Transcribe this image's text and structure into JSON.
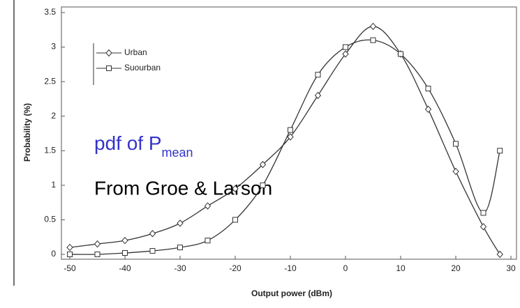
{
  "chart_data": {
    "type": "line",
    "x_label": "Output power (dBm)",
    "y_label": "Probability (%)",
    "x": [
      -50,
      -45,
      -40,
      -35,
      -30,
      -25,
      -20,
      -15,
      -10,
      -5,
      0,
      5,
      10,
      15,
      20,
      25,
      28
    ],
    "series": [
      {
        "name": "Urban",
        "color": "#333333",
        "marker": "diamond",
        "values": [
          0.1,
          0.15,
          0.2,
          0.3,
          0.45,
          0.7,
          0.95,
          1.3,
          1.7,
          2.3,
          2.9,
          3.3,
          2.9,
          2.1,
          1.2,
          0.4,
          0
        ]
      },
      {
        "name": "Suourban",
        "color": "#333333",
        "marker": "square",
        "values": [
          0,
          0,
          0.02,
          0.05,
          0.1,
          0.2,
          0.5,
          1.0,
          1.8,
          2.6,
          3.0,
          3.1,
          2.9,
          2.4,
          1.6,
          0.6,
          1.5
        ]
      }
    ],
    "xlim": [
      -50,
      30
    ],
    "xticks": [
      -50,
      -40,
      -30,
      -20,
      -10,
      0,
      10,
      20,
      30
    ],
    "ylim": [
      0,
      3.5
    ],
    "yticks": [
      0,
      0.5,
      1,
      1.5,
      2,
      2.5,
      3,
      3.5
    ],
    "legend": "upper left",
    "annotations": [
      {
        "text": "pdf of P",
        "subscript": "mean",
        "color": "#3333cc"
      },
      {
        "text": "From Groe & Larson",
        "color": "#000000"
      }
    ]
  }
}
